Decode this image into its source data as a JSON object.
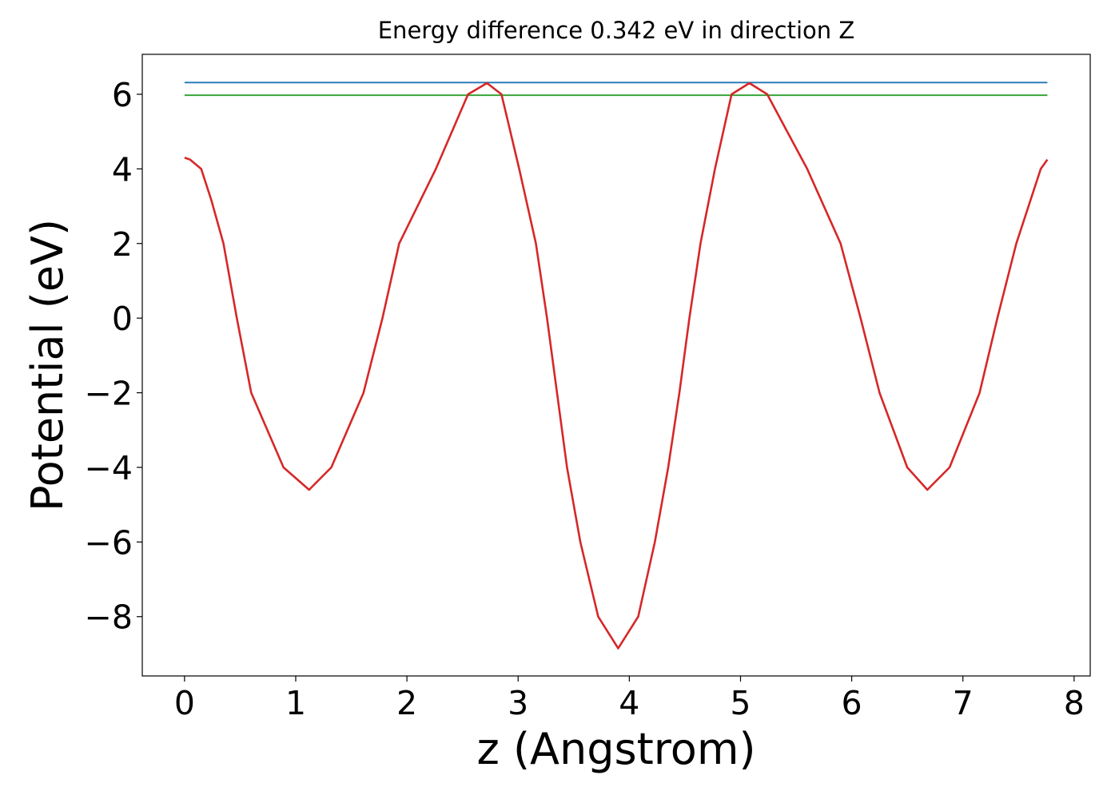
{
  "chart_data": {
    "type": "line",
    "title": "Energy difference 0.342 eV in direction Z",
    "xlabel": "z (Angstrom)",
    "ylabel": "Potential (eV)",
    "xlim": [
      -0.38,
      8.145
    ],
    "ylim": [
      -9.59,
      7.07
    ],
    "xticks": [
      0,
      1,
      2,
      3,
      4,
      5,
      6,
      7,
      8
    ],
    "yticks": [
      {
        "value": -8,
        "label": "−8"
      },
      {
        "value": -6,
        "label": "−6"
      },
      {
        "value": -4,
        "label": "−4"
      },
      {
        "value": -2,
        "label": "−2"
      },
      0,
      2,
      4,
      6
    ],
    "series": [
      {
        "color": "#1f77b4",
        "x": [
          0,
          7.76
        ],
        "values": [
          6.315,
          6.315
        ]
      },
      {
        "color": "#2ca02c",
        "x": [
          0,
          7.76
        ],
        "values": [
          5.973,
          5.973
        ]
      },
      {
        "color": "#d62728",
        "x": [
          0,
          0.05,
          0.15,
          0.24,
          0.35,
          0.47,
          0.6,
          0.89,
          1.12,
          1.32,
          1.61,
          1.78,
          1.93,
          2.26,
          2.55,
          2.72,
          2.85,
          3.01,
          3.16,
          3.26,
          3.35,
          3.44,
          3.56,
          3.72,
          3.9,
          4.08,
          4.23,
          4.35,
          4.45,
          4.54,
          4.64,
          4.77,
          4.92,
          5.08,
          5.24,
          5.42,
          5.6,
          5.9,
          6.08,
          6.25,
          6.5,
          6.68,
          6.88,
          7.15,
          7.31,
          7.48,
          7.7,
          7.76
        ],
        "values": [
          4.3,
          4.25,
          4.0,
          3.17,
          2.0,
          0,
          -2,
          -4,
          -4.6,
          -4,
          -2,
          0,
          2,
          4,
          6,
          6.3,
          6,
          4,
          2,
          0,
          -2,
          -4,
          -6,
          -8,
          -8.85,
          -8,
          -6,
          -4,
          -2,
          0,
          2,
          4,
          6,
          6.3,
          6,
          5,
          4,
          2,
          0,
          -2,
          -4,
          -4.6,
          -4,
          -2,
          0,
          2,
          4,
          4.25
        ]
      }
    ]
  }
}
